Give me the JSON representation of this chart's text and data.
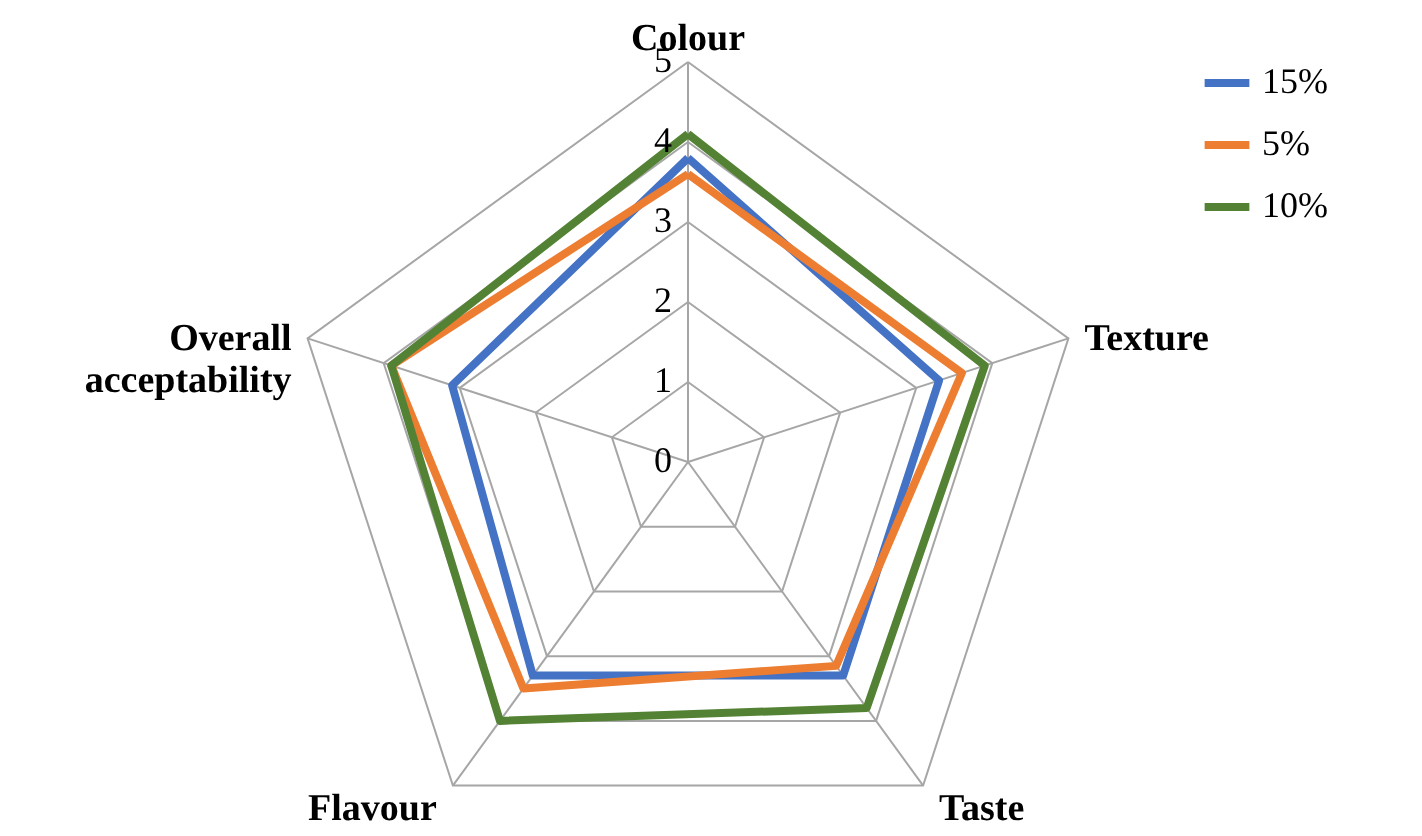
{
  "chart_data": {
    "type": "radar",
    "categories": [
      "Colour",
      "Texture",
      "Taste",
      "Flavour",
      "Overall acceptability"
    ],
    "series": [
      {
        "name": "15%",
        "color": "#4472c4",
        "values": [
          3.8,
          3.3,
          3.3,
          3.3,
          3.1
        ]
      },
      {
        "name": "5%",
        "color": "#ed7d31",
        "values": [
          3.6,
          3.6,
          3.15,
          3.5,
          3.9
        ]
      },
      {
        "name": "10%",
        "color": "#548235",
        "values": [
          4.1,
          3.9,
          3.8,
          4.0,
          3.9
        ]
      }
    ],
    "ylim": [
      0,
      5
    ],
    "yticks": [
      0,
      1,
      2,
      3,
      4,
      5
    ],
    "grid": true,
    "legend": "top right"
  }
}
